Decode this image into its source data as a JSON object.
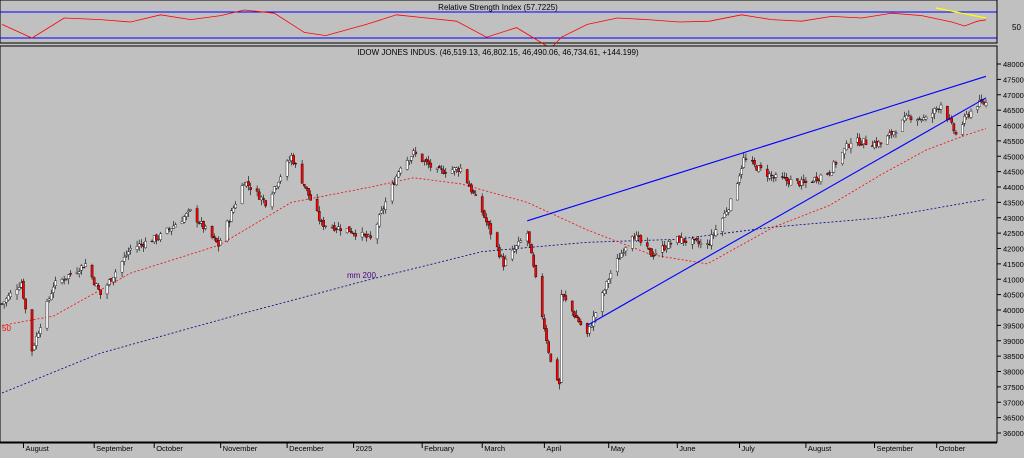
{
  "rsi_panel": {
    "title": "Relative Strength Index (57.7225)",
    "level_label": "50",
    "rsi_value": 57.7225
  },
  "price_panel": {
    "title": "IDOW JONES INDUS. (46,519.13, 46,802.15, 46,490.06, 46,734.61, +144.199)",
    "ma50_label": "50",
    "ma200_label": "mm 200",
    "last_bar": {
      "open": 46519.13,
      "high": 46802.15,
      "low": 46490.06,
      "close": 46734.61,
      "change": 144.199
    }
  },
  "x_axis_labels": [
    "August",
    "September",
    "October",
    "November",
    "December",
    "2025",
    "February",
    "March",
    "April",
    "May",
    "June",
    "July",
    "August",
    "September",
    "October"
  ],
  "y_axis_labels": [
    "48000",
    "47500",
    "47000",
    "46500",
    "46000",
    "45500",
    "45000",
    "44500",
    "44000",
    "43500",
    "43000",
    "42500",
    "42000",
    "41500",
    "41000",
    "40500",
    "40000",
    "39500",
    "39000",
    "38500",
    "38000",
    "37500",
    "37000",
    "36500",
    "36000"
  ],
  "colors": {
    "background": "#c0c0c0",
    "up_candle": "#ffffff",
    "down_candle": "#ff0000",
    "ma50": "#ff0000",
    "ma200": "#000080",
    "trendline": "#0000ff",
    "rsi_line": "#ff0000",
    "rsi_trendline": "#ffff00"
  },
  "chart_data": [
    {
      "type": "line",
      "name": "Relative Strength Index",
      "title": "Relative Strength Index (57.7225)",
      "ylim": [
        30,
        80
      ],
      "last_value": 57.7225,
      "x": [
        "2024-07-22",
        "2024-08-05",
        "2024-08-20",
        "2024-09-06",
        "2024-09-20",
        "2024-10-04",
        "2024-10-18",
        "2024-11-01",
        "2024-11-12",
        "2024-11-26",
        "2024-12-10",
        "2024-12-20",
        "2025-01-08",
        "2025-01-22",
        "2025-02-05",
        "2025-02-19",
        "2025-03-05",
        "2025-03-19",
        "2025-04-04",
        "2025-04-09",
        "2025-04-21",
        "2025-05-05",
        "2025-05-19",
        "2025-06-03",
        "2025-06-17",
        "2025-07-02",
        "2025-07-16",
        "2025-07-30",
        "2025-08-13",
        "2025-08-27",
        "2025-09-10",
        "2025-09-24",
        "2025-10-08",
        "2025-10-14",
        "2025-10-20",
        "2025-10-24"
      ],
      "y": [
        52,
        35,
        60,
        58,
        55,
        64,
        58,
        63,
        70,
        66,
        42,
        38,
        52,
        64,
        60,
        56,
        36,
        48,
        22,
        36,
        52,
        60,
        58,
        55,
        56,
        64,
        58,
        56,
        62,
        60,
        66,
        63,
        55,
        50,
        56,
        57.72
      ]
    },
    {
      "type": "candlestick",
      "title": "IDOW JONES INDUS.",
      "ylim": [
        35800,
        48100
      ],
      "x_range": [
        "2024-07-22",
        "2025-10-24"
      ],
      "close_path": {
        "x": [
          "2024-07-22",
          "2024-07-31",
          "2024-08-05",
          "2024-08-15",
          "2024-08-30",
          "2024-09-06",
          "2024-09-20",
          "2024-10-04",
          "2024-10-18",
          "2024-10-31",
          "2024-11-12",
          "2024-11-22",
          "2024-12-04",
          "2024-12-18",
          "2024-12-31",
          "2025-01-10",
          "2025-01-24",
          "2025-01-30",
          "2025-02-10",
          "2025-02-21",
          "2025-03-03",
          "2025-03-13",
          "2025-03-24",
          "2025-04-04",
          "2025-04-08",
          "2025-04-09",
          "2025-04-21",
          "2025-05-02",
          "2025-05-12",
          "2025-05-21",
          "2025-06-02",
          "2025-06-16",
          "2025-06-27",
          "2025-07-03",
          "2025-07-17",
          "2025-07-31",
          "2025-08-12",
          "2025-08-22",
          "2025-09-05",
          "2025-09-18",
          "2025-09-26",
          "2025-10-03",
          "2025-10-10",
          "2025-10-15",
          "2025-10-20",
          "2025-10-24"
        ],
        "y": [
          40200,
          40900,
          38700,
          40800,
          41500,
          40500,
          42000,
          42400,
          43200,
          42100,
          44200,
          43500,
          45000,
          42800,
          42600,
          42300,
          44700,
          45100,
          44500,
          44600,
          43200,
          41500,
          42500,
          38300,
          37600,
          40500,
          39200,
          41200,
          42500,
          41800,
          42300,
          42100,
          43500,
          44900,
          44300,
          44100,
          44500,
          45500,
          45400,
          46300,
          46200,
          46700,
          45700,
          46300,
          46700,
          46734.61
        ]
      },
      "last_bar": {
        "date": "2025-10-24",
        "open": 46519.13,
        "high": 46802.15,
        "low": 46490.06,
        "close": 46734.61
      }
    },
    {
      "type": "line",
      "name": "50",
      "x": [
        "2024-07-22",
        "2024-08-15",
        "2024-09-20",
        "2024-10-31",
        "2024-12-04",
        "2025-01-10",
        "2025-01-30",
        "2025-02-21",
        "2025-03-24",
        "2025-04-21",
        "2025-05-21",
        "2025-06-16",
        "2025-07-17",
        "2025-08-12",
        "2025-09-05",
        "2025-09-26",
        "2025-10-15",
        "2025-10-24"
      ],
      "y": [
        39500,
        39800,
        41200,
        42100,
        43500,
        44000,
        44300,
        44100,
        43500,
        42600,
        41800,
        41500,
        42700,
        43400,
        44400,
        45200,
        45700,
        45900
      ]
    },
    {
      "type": "line",
      "name": "mm 200",
      "x": [
        "2024-07-22",
        "2024-09-06",
        "2024-11-12",
        "2025-01-10",
        "2025-03-03",
        "2025-04-21",
        "2025-06-02",
        "2025-07-17",
        "2025-09-05",
        "2025-10-24"
      ],
      "y": [
        37300,
        38600,
        39900,
        41000,
        41900,
        42200,
        42300,
        42700,
        43000,
        43600
      ]
    },
    {
      "type": "line",
      "name": "trendlines",
      "lines": [
        {
          "x": [
            "2025-03-24",
            "2025-10-24"
          ],
          "y": [
            42900,
            47600
          ]
        },
        {
          "x": [
            "2025-04-21",
            "2025-10-24"
          ],
          "y": [
            39500,
            46900
          ]
        }
      ]
    }
  ]
}
